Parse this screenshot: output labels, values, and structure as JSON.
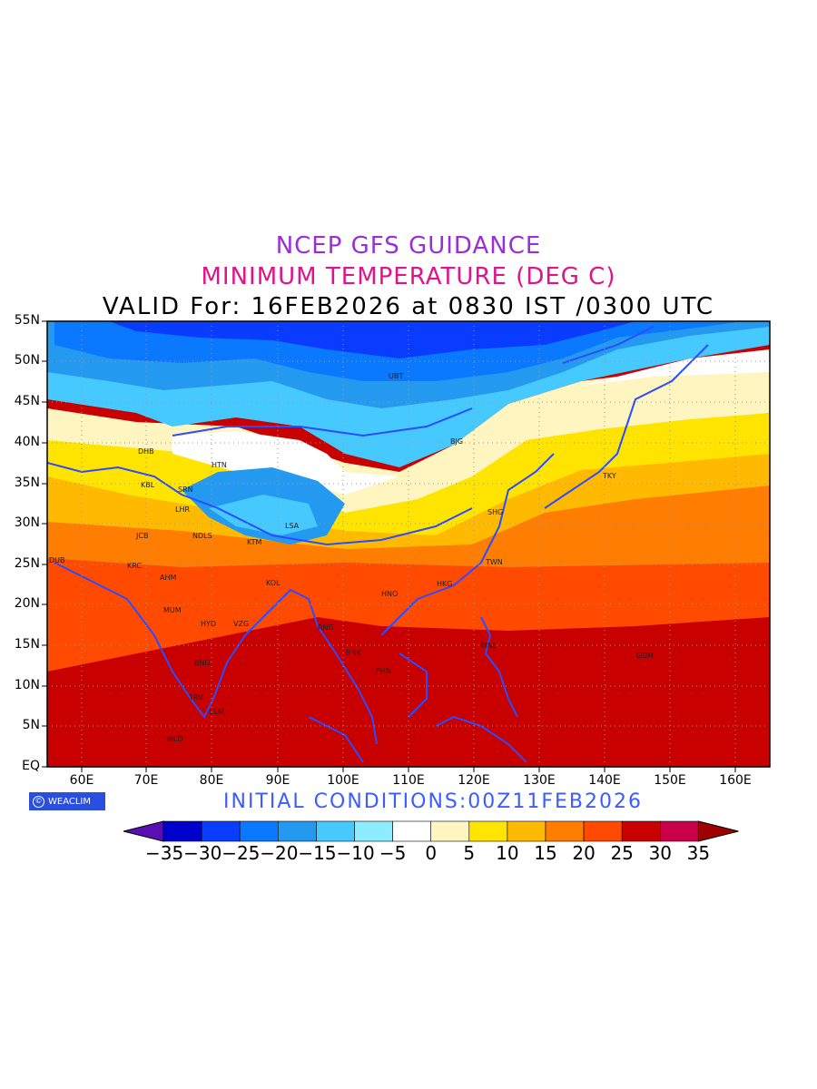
{
  "title": {
    "line1": "NCEP GFS GUIDANCE",
    "line2": "MINIMUM TEMPERATURE (DEG C)",
    "line3": "VALID For: 16FEB2026 at 0830 IST /0300 UTC"
  },
  "axes": {
    "lat_labels": [
      "55N",
      "50N",
      "45N",
      "40N",
      "35N",
      "30N",
      "25N",
      "20N",
      "15N",
      "10N",
      "5N",
      "EQ"
    ],
    "lon_labels": [
      "60E",
      "70E",
      "80E",
      "90E",
      "100E",
      "110E",
      "120E",
      "130E",
      "140E",
      "150E",
      "160E"
    ]
  },
  "cities": [
    {
      "code": "UBT"
    },
    {
      "code": "BJG"
    },
    {
      "code": "DHB"
    },
    {
      "code": "HTN"
    },
    {
      "code": "KBL"
    },
    {
      "code": "SRN"
    },
    {
      "code": "LHR"
    },
    {
      "code": "TKY"
    },
    {
      "code": "SHG"
    },
    {
      "code": "LSA"
    },
    {
      "code": "JCB"
    },
    {
      "code": "NDLS"
    },
    {
      "code": "KTM"
    },
    {
      "code": "DUB"
    },
    {
      "code": "KRC"
    },
    {
      "code": "TWN"
    },
    {
      "code": "AHM"
    },
    {
      "code": "KOL"
    },
    {
      "code": "HKG"
    },
    {
      "code": "HNO"
    },
    {
      "code": "MUM"
    },
    {
      "code": "HYD"
    },
    {
      "code": "VZG"
    },
    {
      "code": "RNG"
    },
    {
      "code": "MNL"
    },
    {
      "code": "BNK"
    },
    {
      "code": "GUM"
    },
    {
      "code": "BNG"
    },
    {
      "code": "PHN"
    },
    {
      "code": "TRV"
    },
    {
      "code": "CLM"
    },
    {
      "code": "MLD"
    }
  ],
  "footer": {
    "logo": "WEACLIM",
    "initial_conditions": "INITIAL  CONDITIONS:00Z11FEB2026"
  },
  "colorbar": {
    "labels": [
      "-35",
      "-30",
      "-25",
      "-20",
      "-15",
      "-10",
      "-5",
      "0",
      "5",
      "10",
      "15",
      "20",
      "25",
      "30",
      "35"
    ],
    "colors": [
      "#3a10c0",
      "#0000cc",
      "#0a3cff",
      "#0a78ff",
      "#2399f0",
      "#46c9ff",
      "#8bedff",
      "#ffffff",
      "#fff5c0",
      "#ffe400",
      "#ffba00",
      "#ff7d00",
      "#ff4a00",
      "#c80000",
      "#c8004a",
      "#a00000",
      "#5a0fb4"
    ]
  }
}
